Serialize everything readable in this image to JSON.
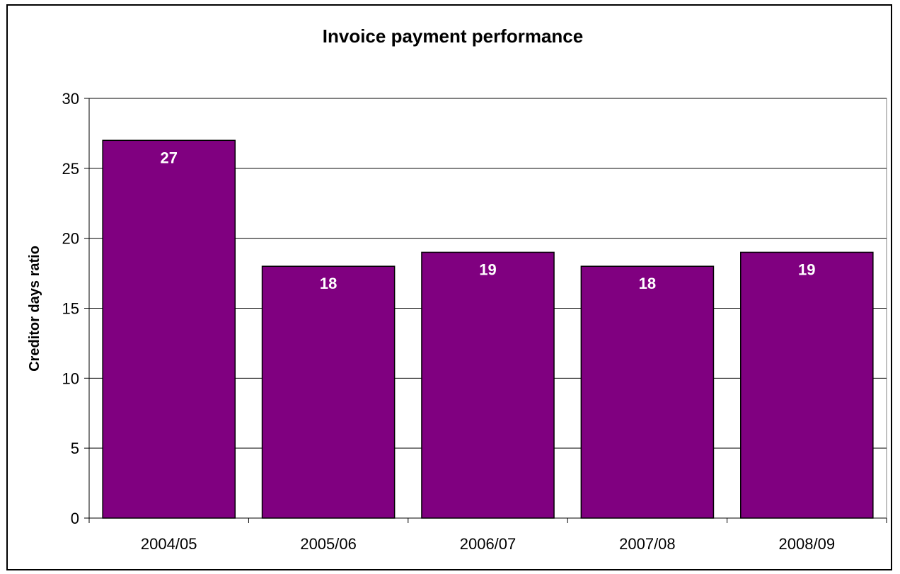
{
  "chart_data": {
    "type": "bar",
    "title": "Invoice payment performance",
    "xlabel": "",
    "ylabel": "Creditor days ratio",
    "categories": [
      "2004/05",
      "2005/06",
      "2006/07",
      "2007/08",
      "2008/09"
    ],
    "values": [
      27,
      18,
      19,
      18,
      19
    ],
    "data_labels": [
      "27",
      "18",
      "19",
      "18",
      "19"
    ],
    "ylim": [
      0,
      30
    ],
    "yticks": [
      0,
      5,
      10,
      15,
      20,
      25,
      30
    ],
    "ytick_labels": [
      "0",
      "5",
      "10",
      "15",
      "20",
      "25",
      "30"
    ],
    "grid": true,
    "legend": "none",
    "bar_color": "#800080",
    "data_label_color": "#ffffff"
  }
}
